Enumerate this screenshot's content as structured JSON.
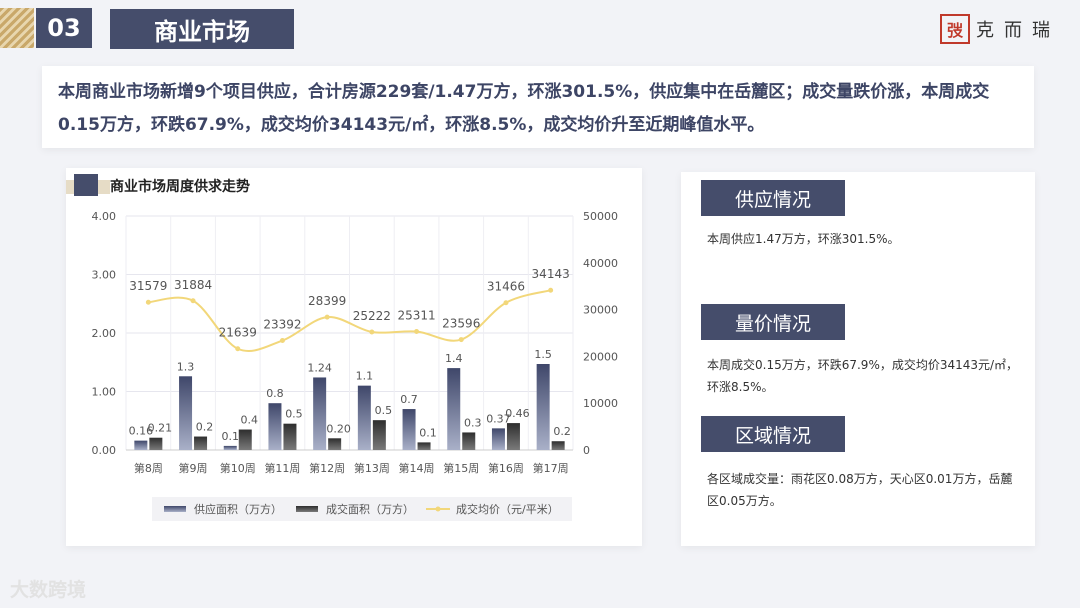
{
  "header": {
    "section_number": "03",
    "section_title": "商业市场",
    "logo_seal": "弢",
    "logo_text": "克而瑞"
  },
  "summary_text": "本周商业市场新增9个项目供应，合计房源229套/1.47万方，环涨301.5%，供应集中在岳麓区；成交量跌价涨，本周成交0.15万方，环跌67.9%，成交均价34143元/㎡，环涨8.5%，成交均价升至近期峰值水平。",
  "chart_title": "商业市场周度供求走势",
  "sections": [
    {
      "button": "供应情况",
      "text": "本周供应1.47万方，环涨301.5%。"
    },
    {
      "button": "量价情况",
      "text": "本周成交0.15万方，环跌67.9%，成交均价34143元/㎡，环涨8.5%。"
    },
    {
      "button": "区域情况",
      "text": "各区域成交量：雨花区0.08万方，天心区0.01万方，岳麓区0.05万方。"
    }
  ],
  "watermark": "大数跨境",
  "colors": {
    "supply": "#4a5275",
    "deal": "#3b3b3b",
    "price": "#f2d77a",
    "accent": "#454d6b"
  },
  "chart_data": {
    "type": "bar",
    "title": "商业市场周度供求走势",
    "categories": [
      "第8周",
      "第9周",
      "第10周",
      "第11周",
      "第12周",
      "第13周",
      "第14周",
      "第15周",
      "第16周",
      "第17周"
    ],
    "series": [
      {
        "name": "供应面积（万方）",
        "type": "bar",
        "axis": "left",
        "values": [
          0.16,
          1.26,
          0.07,
          0.8,
          1.24,
          1.1,
          0.7,
          1.4,
          0.37,
          1.47
        ],
        "labels": [
          "0.16",
          "1.3",
          "0.1",
          "0.8",
          "1.24",
          "1.1",
          "0.7",
          "1.4",
          "0.37",
          "1.5"
        ]
      },
      {
        "name": "成交面积（万方）",
        "type": "bar",
        "axis": "left",
        "values": [
          0.21,
          0.23,
          0.35,
          0.45,
          0.2,
          0.51,
          0.13,
          0.3,
          0.46,
          0.15
        ],
        "labels": [
          "0.21",
          "0.2",
          "0.4",
          "0.5",
          "0.20",
          "0.5",
          "0.1",
          "0.3",
          "0.46",
          "0.2"
        ]
      },
      {
        "name": "成交均价（元/平米）",
        "type": "line",
        "axis": "right",
        "values": [
          31579,
          31884,
          21639,
          23392,
          28399,
          25222,
          25311,
          23596,
          31466,
          34143
        ],
        "labels": [
          "31579",
          "31884",
          "21639",
          "23392",
          "28399",
          "25222",
          "25311",
          "23596",
          "31466",
          "34143"
        ]
      }
    ],
    "ylim_left": [
      0,
      4
    ],
    "yticks_left": [
      "0.00",
      "1.00",
      "2.00",
      "3.00",
      "4.00"
    ],
    "ylim_right": [
      0,
      50000
    ],
    "yticks_right": [
      "0",
      "10000",
      "20000",
      "30000",
      "40000",
      "50000"
    ],
    "legend_position": "bottom",
    "grid": true
  }
}
